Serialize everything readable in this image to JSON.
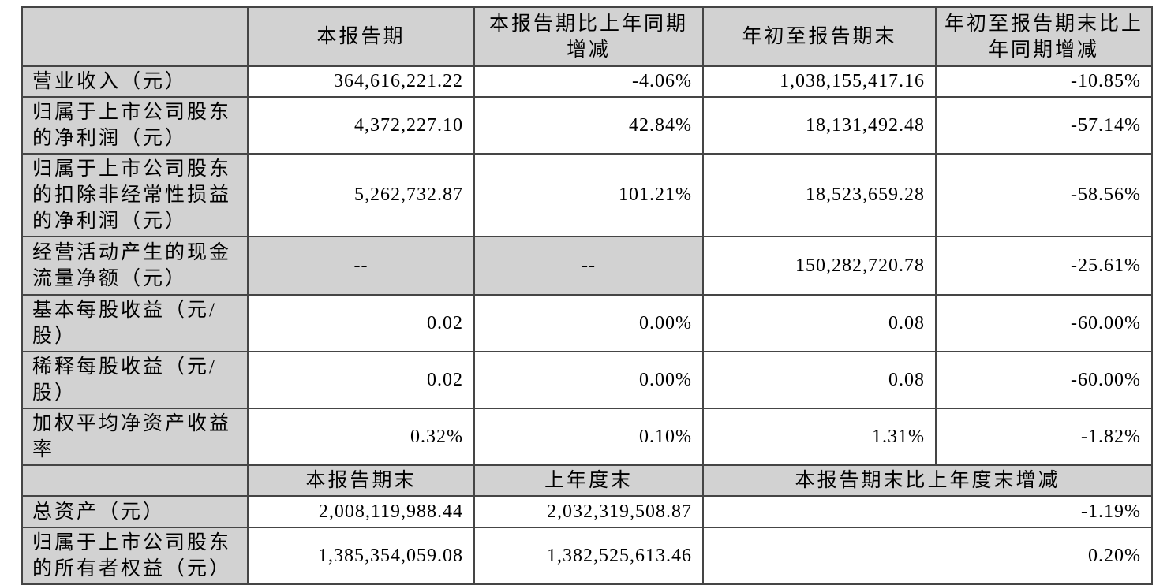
{
  "table": {
    "style": {
      "header_bg": "#d2d2d2",
      "border_color": "#454545",
      "text_color": "#000000",
      "page_bg": "#ffffff"
    },
    "header": [
      "",
      "本报告期",
      "本报告期比上年同期增减",
      "年初至报告期末",
      "年初至报告期末比上年同期增减"
    ],
    "rows": [
      {
        "label": "营业收入（元）",
        "cells": [
          "364,616,221.22",
          "-4.06%",
          "1,038,155,417.16",
          "-10.85%"
        ]
      },
      {
        "label": "归属于上市公司股东的净利润（元）",
        "cells": [
          "4,372,227.10",
          "42.84%",
          "18,131,492.48",
          "-57.14%"
        ]
      },
      {
        "label": "归属于上市公司股东的扣除非经常性损益的净利润（元）",
        "cells": [
          "5,262,732.87",
          "101.21%",
          "18,523,659.28",
          "-58.56%"
        ]
      },
      {
        "label": "经营活动产生的现金流量净额（元）",
        "cells": [
          "--",
          "--",
          "150,282,720.78",
          "-25.61%"
        ]
      },
      {
        "label": "基本每股收益（元/股）",
        "cells": [
          "0.02",
          "0.00%",
          "0.08",
          "-60.00%"
        ]
      },
      {
        "label": "稀释每股收益（元/股）",
        "cells": [
          "0.02",
          "0.00%",
          "0.08",
          "-60.00%"
        ]
      },
      {
        "label": "加权平均净资产收益率",
        "cells": [
          "0.32%",
          "0.10%",
          "1.31%",
          "-1.82%"
        ]
      }
    ],
    "section2": {
      "header": [
        "",
        "本报告期末",
        "上年度末",
        "本报告期末比上年度末增减"
      ],
      "rows": [
        {
          "label": "总资产（元）",
          "cells": [
            "2,008,119,988.44",
            "2,032,319,508.87",
            "-1.19%"
          ]
        },
        {
          "label": "归属于上市公司股东的所有者权益（元）",
          "cells": [
            "1,385,354,059.08",
            "1,382,525,613.46",
            "0.20%"
          ]
        }
      ]
    }
  }
}
